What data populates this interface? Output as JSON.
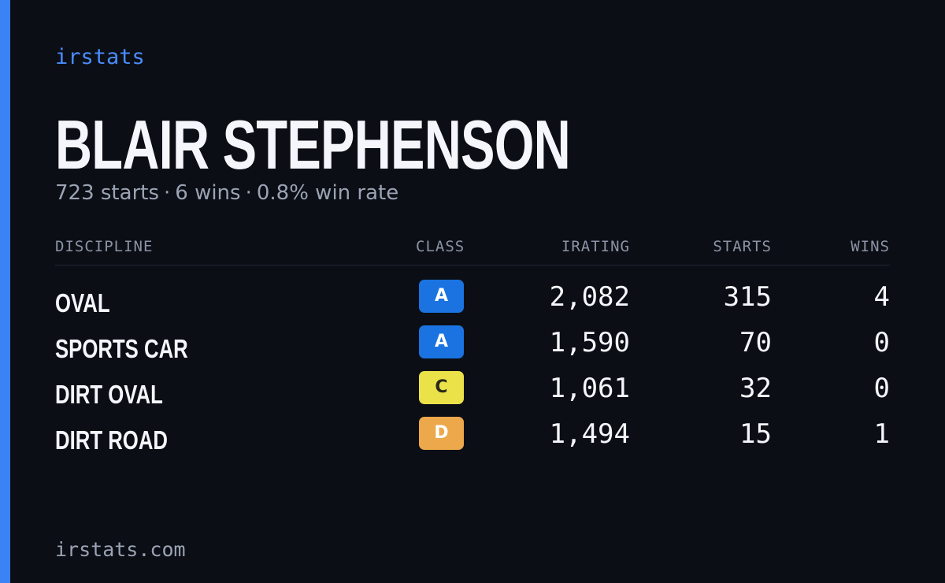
{
  "brand": "irstats",
  "driver": {
    "name": "BLAIR STEPHENSON",
    "starts_text": "723 starts",
    "wins_text": "6 wins",
    "win_rate_text": "0.8% win rate",
    "separator": "·"
  },
  "table": {
    "headers": {
      "discipline": "DISCIPLINE",
      "class": "CLASS",
      "irating": "IRATING",
      "starts": "STARTS",
      "wins": "WINS"
    },
    "rows": [
      {
        "discipline": "OVAL",
        "class": "A",
        "class_color": "#1a73e0",
        "class_text_color": "#ffffff",
        "irating": "2,082",
        "starts": "315",
        "wins": "4"
      },
      {
        "discipline": "SPORTS CAR",
        "class": "A",
        "class_color": "#1a73e0",
        "class_text_color": "#ffffff",
        "irating": "1,590",
        "starts": "70",
        "wins": "0"
      },
      {
        "discipline": "DIRT OVAL",
        "class": "C",
        "class_color": "#ebe24a",
        "class_text_color": "#2a2a1a",
        "irating": "1,061",
        "starts": "32",
        "wins": "0"
      },
      {
        "discipline": "DIRT ROAD",
        "class": "D",
        "class_color": "#eca84a",
        "class_text_color": "#ffffff",
        "irating": "1,494",
        "starts": "15",
        "wins": "1"
      }
    ]
  },
  "footer": "irstats.com",
  "colors": {
    "background": "#0b0e15",
    "accent": "#3b82f6",
    "brand": "#4a8dff"
  }
}
